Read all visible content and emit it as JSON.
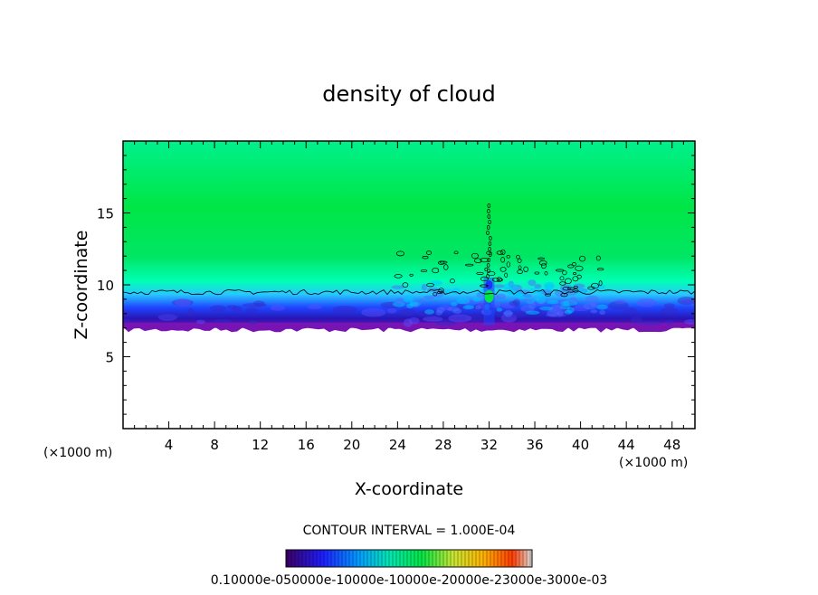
{
  "chart_data": {
    "type": "heatmap",
    "title": "density of cloud",
    "xlabel": "X-coordinate",
    "ylabel": "Z-coordinate",
    "x_unit_left": "(×1000 m)",
    "x_unit_right": "(×1000 m)",
    "xlim": [
      0,
      50
    ],
    "ylim": [
      0,
      20
    ],
    "x_ticks": [
      4,
      8,
      12,
      16,
      20,
      24,
      28,
      32,
      36,
      40,
      44,
      48
    ],
    "y_ticks": [
      5,
      10,
      15
    ],
    "contour_interval": "CONTOUR INTERVAL = 1.000E-04",
    "colorbar_labels": "0.10000e-050000e-10000e-10000e-20000e-23000e-3000e-03",
    "field": {
      "cloud_base_z": 7.0,
      "cloud_contour_z": 9.5,
      "disturbance_x": [
        24,
        42
      ],
      "plume_x": 32,
      "plume_top_z": 15.5
    },
    "colors": {
      "upper_layer": "#00e646",
      "mid_layer": "#00ffb4",
      "transition": "#28c8ff",
      "low_layer": "#1e46ff",
      "base": "#2814b4",
      "bottom_edge": "#7814b4"
    }
  }
}
